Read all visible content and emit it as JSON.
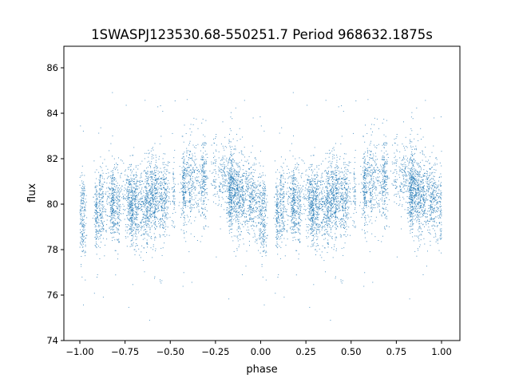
{
  "chart_data": {
    "type": "scatter",
    "title": "1SWASPJ123530.68-550251.7 Period 968632.1875s",
    "xlabel": "phase",
    "ylabel": "flux",
    "xlim": [
      -1.09,
      1.09
    ],
    "ylim": [
      74,
      86.9
    ],
    "xticks": [
      -1.0,
      -0.75,
      -0.5,
      -0.25,
      0.0,
      0.25,
      0.5,
      0.75,
      1.0
    ],
    "xtick_labels": [
      "−1.00",
      "−0.75",
      "−0.50",
      "−0.25",
      "0.00",
      "0.25",
      "0.50",
      "0.75",
      "1.00"
    ],
    "yticks": [
      74,
      76,
      78,
      80,
      82,
      84,
      86
    ],
    "ytick_labels": [
      "74",
      "76",
      "78",
      "80",
      "82",
      "84",
      "86"
    ],
    "grid": false,
    "legend": "none",
    "color": "#1f77b4",
    "series": [
      {
        "name": "flux",
        "description_of_points": "phase-folded light curve, mirrored over phase -1..1",
        "approx_point_count": 9000,
        "mean_profile_phase": [
          0.0,
          0.05,
          0.1,
          0.2,
          0.3,
          0.4,
          0.5,
          0.6,
          0.65,
          0.7,
          0.8,
          0.9,
          1.0
        ],
        "mean_profile_flux": [
          80.0,
          79.8,
          79.8,
          80.0,
          80.0,
          80.3,
          80.8,
          81.0,
          81.0,
          81.2,
          81.0,
          80.5,
          80.0
        ],
        "typical_scatter": 0.8
      }
    ]
  }
}
